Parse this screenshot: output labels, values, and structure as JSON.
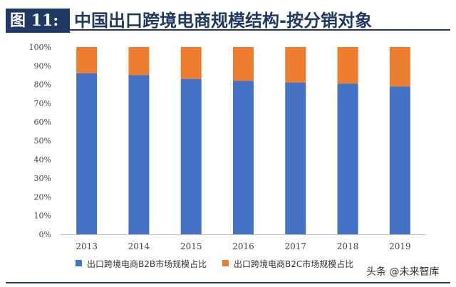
{
  "figure": {
    "label": "图 11:",
    "title": "中国出口跨境电商规模结构-按分销对象"
  },
  "watermark": "头条 @未来智库",
  "chart_data": {
    "type": "bar",
    "stacked": true,
    "categories": [
      "2013",
      "2014",
      "2015",
      "2016",
      "2017",
      "2018",
      "2019"
    ],
    "series": [
      {
        "name": "出口跨境电商B2B市场规模占比",
        "color": "#4472c4",
        "values": [
          86,
          85,
          83,
          82,
          81,
          80.5,
          79
        ]
      },
      {
        "name": "出口跨境电商B2C市场规模占比",
        "color": "#ed7d31",
        "values": [
          14,
          15,
          17,
          18,
          19,
          19.5,
          21
        ]
      }
    ],
    "y_ticks": [
      "0%",
      "10%",
      "20%",
      "30%",
      "40%",
      "50%",
      "60%",
      "70%",
      "80%",
      "90%",
      "100%"
    ],
    "ylim": [
      0,
      100
    ],
    "legend": "bottom",
    "grid": false
  }
}
